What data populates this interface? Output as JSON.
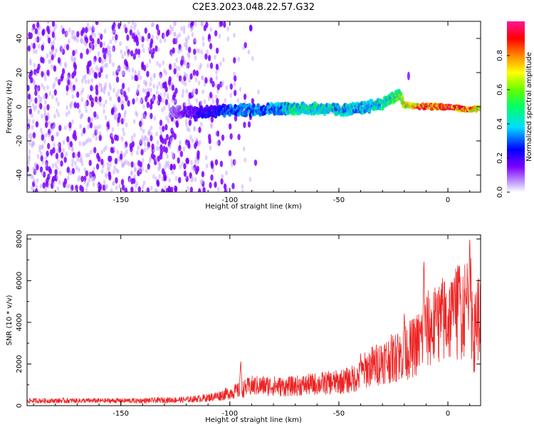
{
  "title": "C2E3.2023.048.22.57.G32",
  "chart_data": [
    {
      "type": "heatmap",
      "xlabel": "Height of straight line (km)",
      "ylabel": "Frequency (Hz)",
      "xlim": [
        -193,
        15
      ],
      "ylim": [
        -50,
        50
      ],
      "xticks": [
        -150,
        -100,
        -50,
        0
      ],
      "yticks": [
        -40,
        -20,
        0,
        20,
        40
      ],
      "colorbar": {
        "label": "Normalized spectral amplitude",
        "range": [
          0,
          1
        ],
        "ticks": [
          "0.0",
          "0.2",
          "0.4",
          "0.6",
          "0.8"
        ],
        "colormap": [
          "#ffffff",
          "#c8a8ff",
          "#7a00ff",
          "#0000ff",
          "#00ddff",
          "#00ff66",
          "#66ff00",
          "#ffff00",
          "#ff8800",
          "#ff0000",
          "#ff1493"
        ]
      },
      "noise_region": {
        "x_range": [
          -193,
          -100
        ],
        "freq_range": [
          -50,
          50
        ],
        "amplitude": 0.1
      },
      "signal_track": [
        {
          "x": -127,
          "freq": -3,
          "amplitude": 0.15
        },
        {
          "x": -120,
          "freq": -3,
          "amplitude": 0.2
        },
        {
          "x": -110,
          "freq": -3,
          "amplitude": 0.3
        },
        {
          "x": -100,
          "freq": -2,
          "amplitude": 0.35
        },
        {
          "x": -90,
          "freq": -2,
          "amplitude": 0.4
        },
        {
          "x": -80,
          "freq": -1,
          "amplitude": 0.4
        },
        {
          "x": -70,
          "freq": -1,
          "amplitude": 0.5
        },
        {
          "x": -60,
          "freq": -1,
          "amplitude": 0.5
        },
        {
          "x": -50,
          "freq": -2,
          "amplitude": 0.45
        },
        {
          "x": -40,
          "freq": -1,
          "amplitude": 0.45
        },
        {
          "x": -30,
          "freq": 2,
          "amplitude": 0.5
        },
        {
          "x": -22,
          "freq": 7,
          "amplitude": 0.6
        },
        {
          "x": -20,
          "freq": 1,
          "amplitude": 0.75
        },
        {
          "x": -10,
          "freq": 0,
          "amplitude": 0.9
        },
        {
          "x": 0,
          "freq": 0,
          "amplitude": 0.9
        },
        {
          "x": 10,
          "freq": -2,
          "amplitude": 0.85
        },
        {
          "x": 15,
          "freq": -1,
          "amplitude": 0.7
        }
      ]
    },
    {
      "type": "line",
      "xlabel": "Height of straight line (km)",
      "ylabel": "SNR (10 * v/v)",
      "xlim": [
        -193,
        15
      ],
      "ylim": [
        0,
        8200
      ],
      "xticks": [
        -150,
        -100,
        -50,
        0
      ],
      "yticks": [
        0,
        2000,
        4000,
        6000,
        8000
      ],
      "series": [
        {
          "color": "#ee2222",
          "x": [
            -193,
            -180,
            -170,
            -160,
            -150,
            -140,
            -130,
            -120,
            -110,
            -105,
            -100,
            -95,
            -90,
            -85,
            -80,
            -75,
            -70,
            -65,
            -60,
            -55,
            -50,
            -45,
            -40,
            -38,
            -35,
            -32,
            -30,
            -28,
            -25,
            -22,
            -20,
            -18,
            -15,
            -12,
            -10,
            -8,
            -5,
            -3,
            0,
            3,
            5,
            8,
            10,
            11,
            12,
            13,
            15
          ],
          "y": [
            250,
            250,
            250,
            250,
            250,
            250,
            280,
            300,
            400,
            500,
            650,
            800,
            1000,
            1000,
            1000,
            950,
            1000,
            1050,
            1100,
            1150,
            1200,
            1300,
            1500,
            1800,
            2000,
            2100,
            2300,
            2300,
            2400,
            2500,
            2600,
            2800,
            3000,
            3400,
            3800,
            3900,
            4000,
            4300,
            4400,
            4500,
            4800,
            5000,
            5200,
            4800,
            3200,
            4500,
            4500
          ],
          "peaks": [
            {
              "x": -95,
              "y": 2200
            },
            {
              "x": -40,
              "y": 2500
            },
            {
              "x": -23,
              "y": 3600
            },
            {
              "x": -20,
              "y": 4600
            },
            {
              "x": -11,
              "y": 7200
            },
            {
              "x": -5,
              "y": 5600
            },
            {
              "x": 3,
              "y": 6400
            },
            {
              "x": 5,
              "y": 6700
            },
            {
              "x": 9,
              "y": 6500
            },
            {
              "x": 10,
              "y": 8300
            }
          ]
        }
      ]
    }
  ]
}
